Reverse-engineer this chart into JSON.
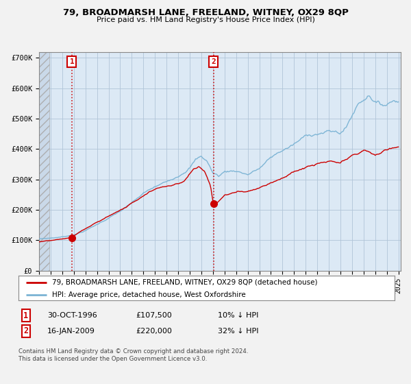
{
  "title": "79, BROADMARSH LANE, FREELAND, WITNEY, OX29 8QP",
  "subtitle": "Price paid vs. HM Land Registry's House Price Index (HPI)",
  "legend_line1": "79, BROADMARSH LANE, FREELAND, WITNEY, OX29 8QP (detached house)",
  "legend_line2": "HPI: Average price, detached house, West Oxfordshire",
  "sale1_label": "1",
  "sale1_date": "30-OCT-1996",
  "sale1_price": "£107,500",
  "sale1_hpi": "10% ↓ HPI",
  "sale2_label": "2",
  "sale2_date": "16-JAN-2009",
  "sale2_price": "£220,000",
  "sale2_hpi": "32% ↓ HPI",
  "footer": "Contains HM Land Registry data © Crown copyright and database right 2024.\nThis data is licensed under the Open Government Licence v3.0.",
  "sale_color": "#cc0000",
  "hpi_color": "#7ab3d4",
  "background_color": "#f2f2f2",
  "plot_bg_color": "#dce9f5",
  "ylim": [
    0,
    720000
  ],
  "xlim_start": 1994.0,
  "xlim_end": 2025.2,
  "sale1_x": 1996.83,
  "sale1_y": 107500,
  "sale2_x": 2009.05,
  "sale2_y": 220000,
  "hpi_anchors_x": [
    1994.0,
    1995.0,
    1996.0,
    1997.0,
    1998.0,
    1999.0,
    2000.0,
    2001.0,
    2002.0,
    2003.0,
    2004.0,
    2005.0,
    2006.0,
    2007.0,
    2007.5,
    2008.0,
    2008.5,
    2009.0,
    2009.5,
    2010.0,
    2011.0,
    2012.0,
    2013.0,
    2014.0,
    2015.0,
    2016.0,
    2017.0,
    2018.0,
    2019.0,
    2020.0,
    2020.5,
    2021.0,
    2021.5,
    2022.0,
    2022.5,
    2023.0,
    2023.5,
    2024.0,
    2024.5,
    2025.0
  ],
  "hpi_anchors_y": [
    105000,
    108000,
    112000,
    120000,
    135000,
    155000,
    178000,
    200000,
    225000,
    255000,
    275000,
    290000,
    315000,
    350000,
    375000,
    385000,
    370000,
    330000,
    320000,
    335000,
    340000,
    330000,
    350000,
    385000,
    410000,
    430000,
    455000,
    470000,
    475000,
    470000,
    490000,
    530000,
    570000,
    590000,
    610000,
    590000,
    575000,
    580000,
    595000,
    600000
  ],
  "sale_anchors_x": [
    1994.0,
    1995.0,
    1996.0,
    1996.83,
    1997.5,
    1998.5,
    1999.5,
    2000.5,
    2001.5,
    2002.5,
    2003.5,
    2004.5,
    2005.5,
    2006.5,
    2007.3,
    2007.8,
    2008.3,
    2008.8,
    2009.05,
    2009.5,
    2010.0,
    2011.0,
    2012.0,
    2013.0,
    2014.0,
    2015.0,
    2016.0,
    2017.0,
    2018.0,
    2019.0,
    2020.0,
    2020.5,
    2021.0,
    2021.5,
    2022.0,
    2022.5,
    2023.0,
    2023.5,
    2024.0,
    2024.5,
    2025.0
  ],
  "sale_anchors_y": [
    95000,
    98000,
    102000,
    107500,
    125000,
    145000,
    165000,
    185000,
    205000,
    230000,
    260000,
    275000,
    285000,
    300000,
    340000,
    350000,
    335000,
    285000,
    220000,
    235000,
    255000,
    265000,
    270000,
    285000,
    305000,
    325000,
    345000,
    360000,
    370000,
    375000,
    365000,
    375000,
    385000,
    390000,
    405000,
    395000,
    385000,
    395000,
    405000,
    410000,
    415000
  ],
  "hatch_end": 1994.9
}
